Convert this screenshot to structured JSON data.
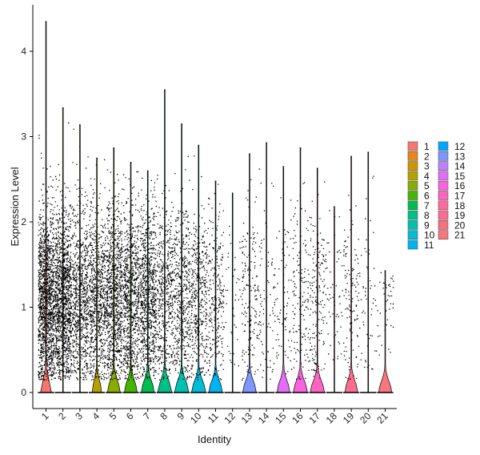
{
  "chart_data": {
    "type": "violin",
    "xlabel": "Identity",
    "ylabel": "Expression Level",
    "ylim": [
      -0.2,
      4.55
    ],
    "yticks": [
      0,
      1,
      2,
      3,
      4
    ],
    "grid": false,
    "legend_position": "right",
    "categories": [
      "1",
      "2",
      "3",
      "4",
      "5",
      "6",
      "7",
      "8",
      "9",
      "10",
      "11",
      "12",
      "13",
      "14",
      "15",
      "16",
      "17",
      "18",
      "19",
      "20",
      "21"
    ],
    "colors": [
      "#F8766D",
      "#E7851E",
      "#D09400",
      "#B2A100",
      "#89AC00",
      "#45B500",
      "#00BC51",
      "#00C087",
      "#00C0B2",
      "#00BCD6",
      "#00B3F2",
      "#00A6FF",
      "#7F96FF",
      "#BC81FF",
      "#E26EF7",
      "#F863DF",
      "#FF62BF",
      "#FF6A9A",
      "#FF6C91",
      "#F5727A",
      "#F8767D"
    ],
    "max_values": [
      4.35,
      3.34,
      3.14,
      2.75,
      2.87,
      2.7,
      2.6,
      3.55,
      3.15,
      2.9,
      2.48,
      2.34,
      2.8,
      2.93,
      2.65,
      2.87,
      2.63,
      2.18,
      2.77,
      2.82,
      1.43
    ],
    "cell_density": [
      1.0,
      0.9,
      0.55,
      0.55,
      0.65,
      0.6,
      0.6,
      0.35,
      0.35,
      0.3,
      0.2,
      0.03,
      0.12,
      0.06,
      0.05,
      0.1,
      0.12,
      0.04,
      0.09,
      0.04,
      0.03
    ],
    "zero_bulge_width": [
      0.32,
      0.02,
      0.02,
      0.28,
      0.38,
      0.38,
      0.38,
      0.42,
      0.42,
      0.42,
      0.4,
      0.02,
      0.4,
      0.02,
      0.38,
      0.42,
      0.42,
      0.02,
      0.38,
      0.02,
      0.38
    ]
  }
}
